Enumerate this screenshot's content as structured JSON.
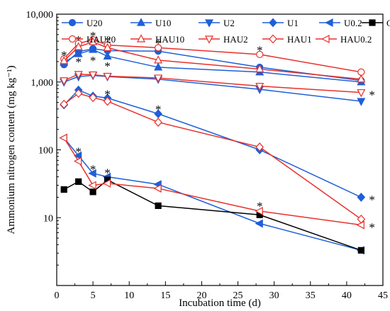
{
  "chart_data": {
    "type": "line",
    "title": "",
    "xlabel": "Incubation time (d)",
    "ylabel": "Ammonium nitrogen content (mg kg⁻¹)",
    "xlim": [
      0,
      45
    ],
    "ylim": [
      1,
      10000
    ],
    "y_scale": "log",
    "x_ticks": [
      0,
      5,
      10,
      15,
      20,
      25,
      30,
      35,
      40,
      45
    ],
    "x_tick_labels": [
      "0",
      "5",
      "10",
      "15",
      "20",
      "25",
      "30",
      "35",
      "40",
      "45"
    ],
    "y_ticks": [
      10,
      100,
      1000,
      10000
    ],
    "y_tick_labels": [
      "10",
      "100",
      "1,000",
      "10,000"
    ],
    "x": [
      1,
      3,
      5,
      7,
      14,
      28,
      42
    ],
    "grid": false,
    "legend_position": "top",
    "series": [
      {
        "name": "U20",
        "color": "#1f5fd8",
        "marker": "circle",
        "fill": "filled",
        "values": [
          1800,
          2800,
          3100,
          2900,
          2850,
          1650,
          1050
        ]
      },
      {
        "name": "U10",
        "color": "#1f5fd8",
        "marker": "triangle-up",
        "fill": "filled",
        "values": [
          1950,
          2600,
          3000,
          2400,
          1650,
          1400,
          1000
        ]
      },
      {
        "name": "U2",
        "color": "#1f5fd8",
        "marker": "triangle-down",
        "fill": "filled",
        "values": [
          1000,
          1200,
          1250,
          1200,
          1100,
          780,
          520
        ]
      },
      {
        "name": "U1",
        "color": "#1f5fd8",
        "marker": "diamond",
        "fill": "filled",
        "values": [
          460,
          760,
          620,
          580,
          340,
          100,
          20
        ]
      },
      {
        "name": "U0.2",
        "color": "#1f5fd8",
        "marker": "triangle-left",
        "fill": "filled",
        "values": [
          150,
          82,
          45,
          40,
          31,
          8.2,
          3.3
        ]
      },
      {
        "name": "CK",
        "color": "#000000",
        "marker": "square",
        "fill": "filled",
        "values": [
          26,
          34,
          24,
          36,
          15,
          11,
          3.3
        ]
      },
      {
        "name": "HAU20",
        "color": "#e8302a",
        "marker": "circle",
        "fill": "open",
        "values": [
          2200,
          3700,
          4200,
          3500,
          3200,
          2550,
          1400
        ]
      },
      {
        "name": "HAU10",
        "color": "#e8302a",
        "marker": "triangle-up",
        "fill": "open",
        "values": [
          2050,
          3300,
          3900,
          3200,
          2100,
          1550,
          1100
        ]
      },
      {
        "name": "HAU2",
        "color": "#e8302a",
        "marker": "triangle-down",
        "fill": "open",
        "values": [
          1050,
          1300,
          1280,
          1220,
          1150,
          870,
          700
        ]
      },
      {
        "name": "HAU1",
        "color": "#e8302a",
        "marker": "diamond",
        "fill": "open",
        "values": [
          470,
          680,
          590,
          520,
          255,
          110,
          9.5
        ]
      },
      {
        "name": "HAU0.2",
        "color": "#e8302a",
        "marker": "triangle-left",
        "fill": "open",
        "values": [
          150,
          68,
          30,
          32,
          27,
          12.5,
          7.8
        ]
      }
    ],
    "annotations": [
      {
        "text": "*",
        "x": 1,
        "y": 2700
      },
      {
        "text": "*",
        "x": 3,
        "y": 4500
      },
      {
        "text": "*",
        "x": 5,
        "y": 5200
      },
      {
        "text": "*",
        "x": 7,
        "y": 4400
      },
      {
        "text": "*",
        "x": 3,
        "y": 2150
      },
      {
        "text": "*",
        "x": 5,
        "y": 2250
      },
      {
        "text": "*",
        "x": 7,
        "y": 1850
      },
      {
        "text": "*",
        "x": 14,
        "y": 4000
      },
      {
        "text": "*",
        "x": 28,
        "y": 3200
      },
      {
        "text": "*",
        "x": 7,
        "y": 720
      },
      {
        "text": "*",
        "x": 14,
        "y": 430
      },
      {
        "text": "*",
        "x": 3,
        "y": 102
      },
      {
        "text": "*",
        "x": 5,
        "y": 56
      },
      {
        "text": "*",
        "x": 7,
        "y": 50
      },
      {
        "text": "*",
        "x": 28,
        "y": 16
      },
      {
        "text": "*",
        "x": 43.5,
        "y": 700
      },
      {
        "text": "*",
        "x": 43.5,
        "y": 20
      },
      {
        "text": "*",
        "x": 43.5,
        "y": 7.8
      }
    ]
  }
}
